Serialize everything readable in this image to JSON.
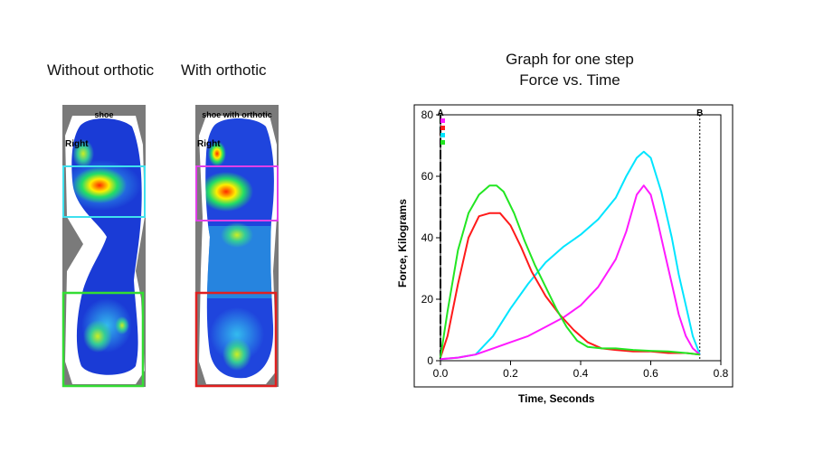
{
  "footprints": {
    "without": {
      "caption": "Without orthotic",
      "shoe_label": "shoe",
      "side_label": "Right",
      "box_top_color": "#3fe0ee",
      "box_bottom_color": "#33dd33"
    },
    "with": {
      "caption": "With orthotic",
      "shoe_label": "shoe with orthotic",
      "side_label": "Right",
      "box_top_color": "#e040e8",
      "box_bottom_color": "#e02020"
    }
  },
  "chart_title": {
    "line1": "Graph for one step",
    "line2": "Force vs. Time"
  },
  "chart_data": {
    "type": "line",
    "xlabel": "Time, Seconds",
    "ylabel": "Force, Kilograms",
    "xlim": [
      0,
      0.8
    ],
    "ylim": [
      0,
      80
    ],
    "xticks": [
      "0.0",
      "0.2",
      "0.4",
      "0.6",
      "0.8"
    ],
    "yticks": [
      "0",
      "20",
      "40",
      "60",
      "80"
    ],
    "markers": [
      {
        "label": "A",
        "x": 0.0
      },
      {
        "label": "B",
        "x": 0.74
      }
    ],
    "series": [
      {
        "color": "#00e5ff",
        "points": [
          [
            0,
            0.5
          ],
          [
            0.05,
            1
          ],
          [
            0.1,
            2
          ],
          [
            0.15,
            8
          ],
          [
            0.2,
            17
          ],
          [
            0.25,
            25
          ],
          [
            0.3,
            32
          ],
          [
            0.35,
            37
          ],
          [
            0.4,
            41
          ],
          [
            0.45,
            46
          ],
          [
            0.5,
            53
          ],
          [
            0.53,
            60
          ],
          [
            0.56,
            66
          ],
          [
            0.58,
            68
          ],
          [
            0.6,
            66
          ],
          [
            0.63,
            55
          ],
          [
            0.66,
            40
          ],
          [
            0.68,
            28
          ],
          [
            0.7,
            18
          ],
          [
            0.72,
            8
          ],
          [
            0.74,
            2
          ]
        ]
      },
      {
        "color": "#ff1aff",
        "points": [
          [
            0,
            0.5
          ],
          [
            0.05,
            1
          ],
          [
            0.1,
            2
          ],
          [
            0.15,
            4
          ],
          [
            0.2,
            6
          ],
          [
            0.25,
            8
          ],
          [
            0.3,
            11
          ],
          [
            0.35,
            14
          ],
          [
            0.4,
            18
          ],
          [
            0.45,
            24
          ],
          [
            0.5,
            33
          ],
          [
            0.53,
            42
          ],
          [
            0.56,
            54
          ],
          [
            0.58,
            57
          ],
          [
            0.6,
            54
          ],
          [
            0.62,
            45
          ],
          [
            0.64,
            35
          ],
          [
            0.66,
            25
          ],
          [
            0.68,
            15
          ],
          [
            0.7,
            8
          ],
          [
            0.72,
            4
          ],
          [
            0.74,
            2
          ]
        ]
      },
      {
        "color": "#ff1a1a",
        "points": [
          [
            0,
            1
          ],
          [
            0.02,
            8
          ],
          [
            0.05,
            25
          ],
          [
            0.08,
            40
          ],
          [
            0.11,
            47
          ],
          [
            0.14,
            48
          ],
          [
            0.17,
            48
          ],
          [
            0.2,
            44
          ],
          [
            0.23,
            37
          ],
          [
            0.26,
            29
          ],
          [
            0.3,
            21
          ],
          [
            0.34,
            15
          ],
          [
            0.38,
            10
          ],
          [
            0.42,
            6
          ],
          [
            0.46,
            4
          ],
          [
            0.5,
            3.5
          ],
          [
            0.55,
            3
          ],
          [
            0.6,
            3
          ],
          [
            0.65,
            2.5
          ],
          [
            0.7,
            2.5
          ],
          [
            0.74,
            2
          ]
        ]
      },
      {
        "color": "#22e622",
        "points": [
          [
            0,
            1
          ],
          [
            0.02,
            16
          ],
          [
            0.05,
            36
          ],
          [
            0.08,
            48
          ],
          [
            0.11,
            54
          ],
          [
            0.14,
            57
          ],
          [
            0.16,
            57
          ],
          [
            0.18,
            55
          ],
          [
            0.21,
            48
          ],
          [
            0.24,
            39
          ],
          [
            0.27,
            31
          ],
          [
            0.3,
            24
          ],
          [
            0.33,
            17
          ],
          [
            0.36,
            11
          ],
          [
            0.39,
            6.5
          ],
          [
            0.42,
            4.5
          ],
          [
            0.46,
            4
          ],
          [
            0.5,
            4
          ],
          [
            0.55,
            3.5
          ],
          [
            0.6,
            3.2
          ],
          [
            0.65,
            3
          ],
          [
            0.7,
            2.5
          ],
          [
            0.74,
            2
          ]
        ]
      }
    ]
  }
}
